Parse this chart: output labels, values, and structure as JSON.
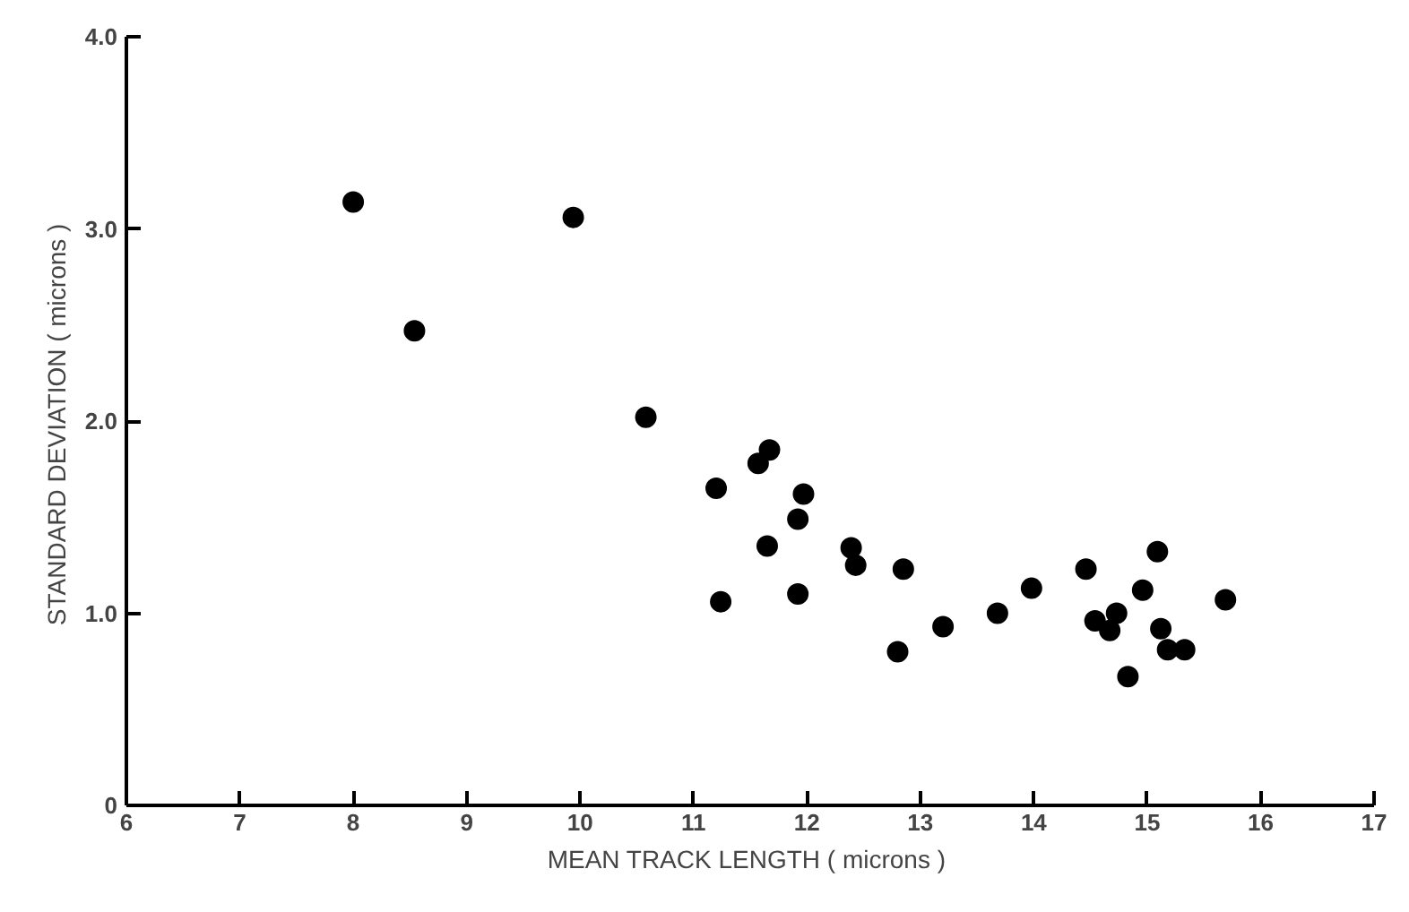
{
  "chart_data": {
    "type": "scatter",
    "xlabel": "MEAN TRACK LENGTH  ( microns )",
    "ylabel": "STANDARD DEVIATION  ( microns )",
    "x": [
      8.0,
      8.54,
      9.94,
      10.58,
      11.2,
      11.24,
      11.57,
      11.67,
      11.65,
      11.92,
      11.97,
      11.92,
      12.39,
      12.43,
      12.85,
      12.8,
      13.2,
      13.68,
      13.98,
      14.46,
      14.54,
      14.67,
      14.73,
      14.83,
      14.96,
      15.09,
      15.12,
      15.18,
      15.33,
      15.69
    ],
    "series": [
      {
        "color": "#000000",
        "values": [
          3.14,
          2.47,
          3.06,
          2.02,
          1.65,
          1.06,
          1.78,
          1.85,
          1.35,
          1.49,
          1.62,
          1.1,
          1.34,
          1.25,
          1.23,
          0.8,
          0.93,
          1.0,
          1.13,
          1.23,
          0.96,
          0.91,
          1.0,
          0.67,
          1.12,
          1.32,
          0.92,
          0.81,
          0.81,
          1.07
        ]
      }
    ],
    "xlim": [
      6,
      17
    ],
    "ylim": [
      0,
      4.0
    ],
    "xticks": [
      6,
      7,
      8,
      9,
      10,
      11,
      12,
      13,
      14,
      15,
      16,
      17
    ],
    "yticks": [
      0,
      {
        "value": 1,
        "label": "1.0"
      },
      {
        "value": 2,
        "label": "2.0"
      },
      {
        "value": 3,
        "label": "3.0"
      },
      {
        "value": 4,
        "label": "4.0"
      }
    ],
    "grid": false,
    "marker": "circle"
  }
}
